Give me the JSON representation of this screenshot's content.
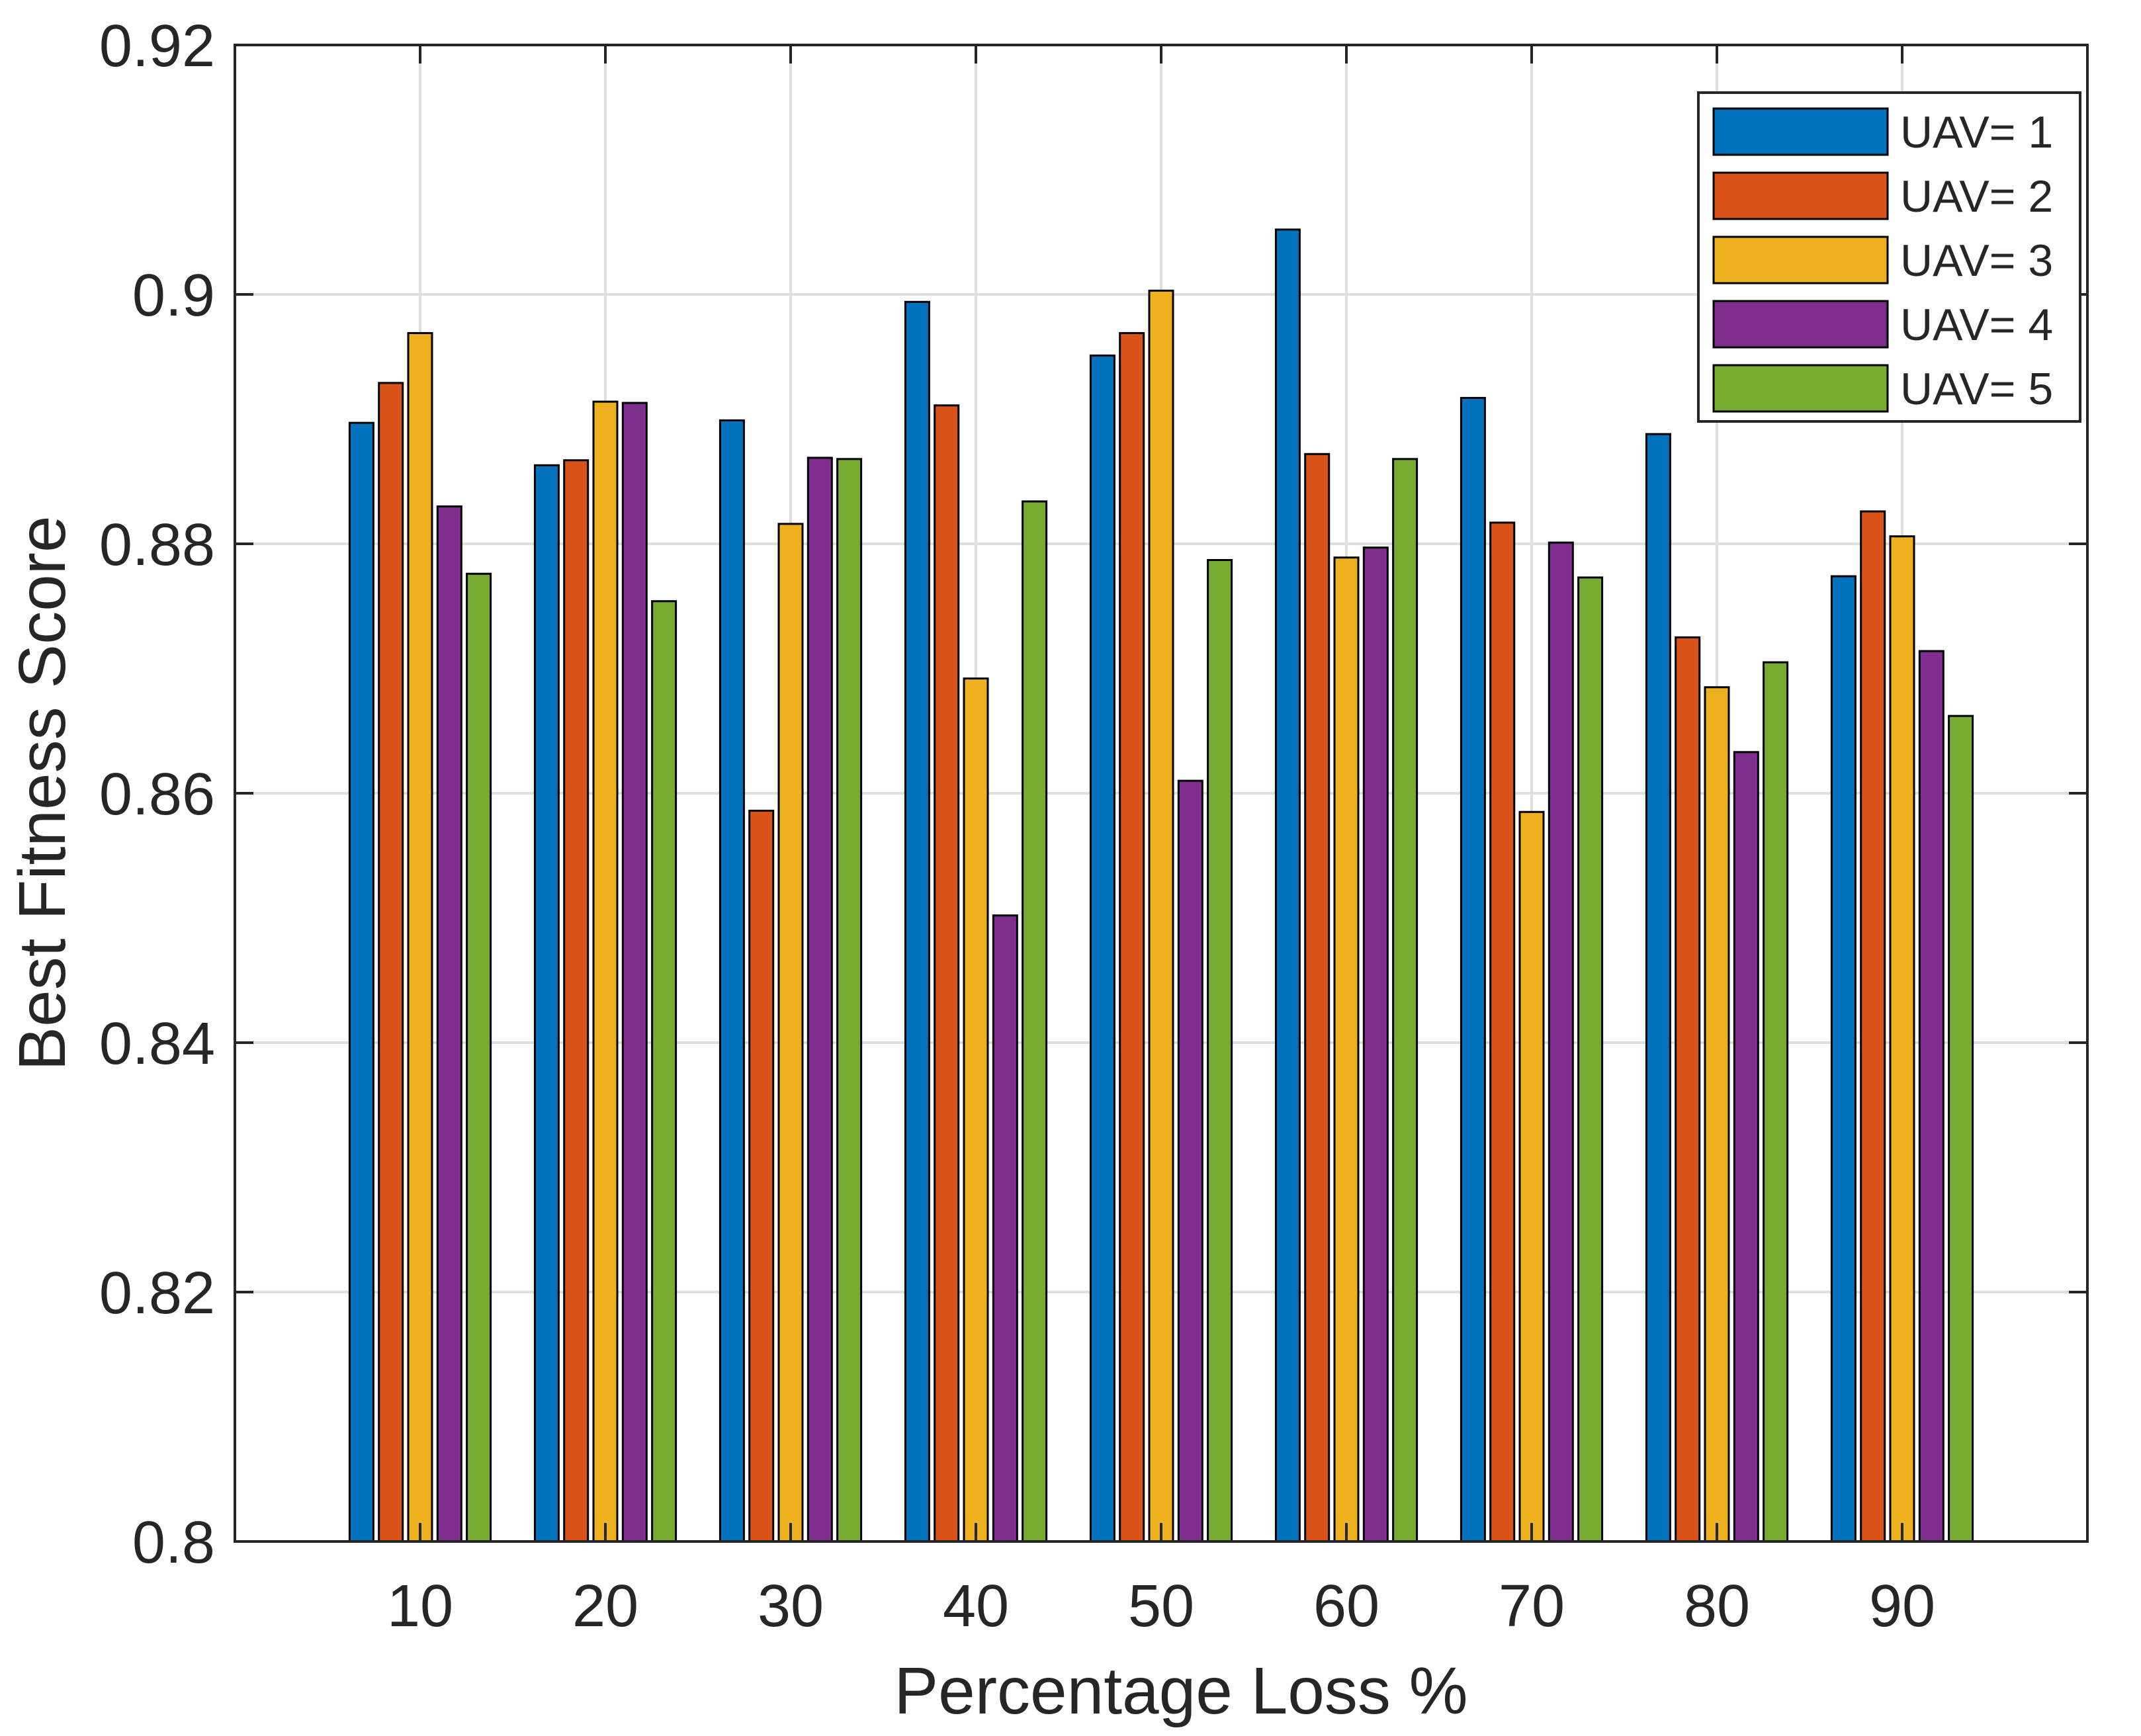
{
  "chart_data": {
    "type": "bar",
    "title": "",
    "xlabel": "Percentage Loss %",
    "ylabel": "Best Fitness Score",
    "categories": [
      "10",
      "20",
      "30",
      "40",
      "50",
      "60",
      "70",
      "80",
      "90"
    ],
    "ylim": [
      0.8,
      0.92
    ],
    "yticks": [
      "0.8",
      "0.82",
      "0.84",
      "0.86",
      "0.88",
      "0.9",
      "0.92"
    ],
    "ytick_values": [
      0.8,
      0.82,
      0.84,
      0.86,
      0.88,
      0.9,
      0.92
    ],
    "grid": true,
    "legend_position": "top-right",
    "series": [
      {
        "name": "UAV= 1",
        "color": "#0072BD",
        "values": [
          0.8897,
          0.8863,
          0.8899,
          0.8994,
          0.8951,
          0.9052,
          0.8917,
          0.8888,
          0.8774
        ]
      },
      {
        "name": "UAV= 2",
        "color": "#D95319",
        "values": [
          0.8929,
          0.8867,
          0.8586,
          0.8911,
          0.8969,
          0.8872,
          0.8817,
          0.8725,
          0.8826
        ]
      },
      {
        "name": "UAV= 3",
        "color": "#EDB120",
        "values": [
          0.8969,
          0.8914,
          0.8816,
          0.8692,
          0.9003,
          0.8789,
          0.8585,
          0.8685,
          0.8806
        ]
      },
      {
        "name": "UAV= 4",
        "color": "#7E2F8E",
        "values": [
          0.883,
          0.8913,
          0.8869,
          0.8502,
          0.861,
          0.8797,
          0.8801,
          0.8633,
          0.8714
        ]
      },
      {
        "name": "UAV= 5",
        "color": "#77AC30",
        "values": [
          0.8776,
          0.8754,
          0.8868,
          0.8834,
          0.8787,
          0.8868,
          0.8773,
          0.8705,
          0.8662
        ]
      }
    ]
  }
}
